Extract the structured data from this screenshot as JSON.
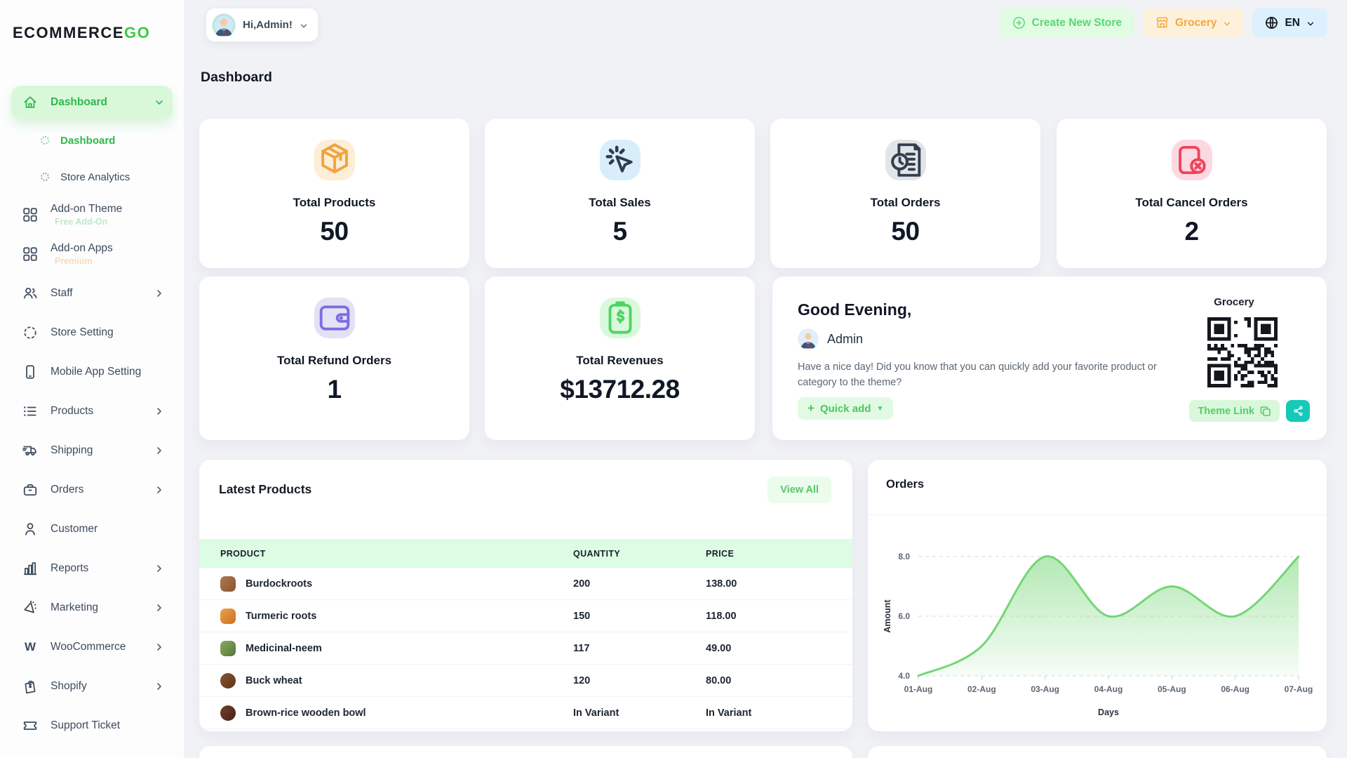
{
  "brand": {
    "text": "ECOMMERCE",
    "accent": "GO"
  },
  "header": {
    "greeting": "Hi,Admin!",
    "create_store": "Create New Store",
    "store": "Grocery",
    "lang": "EN"
  },
  "page_title": "Dashboard",
  "sidebar": {
    "items": [
      {
        "label": "Dashboard"
      },
      {
        "label": "Dashboard"
      },
      {
        "label": "Store Analytics"
      },
      {
        "label": "Add-on Theme",
        "badge": "Free Add-On"
      },
      {
        "label": "Add-on Apps",
        "badge": "Premium"
      },
      {
        "label": "Staff"
      },
      {
        "label": "Store Setting"
      },
      {
        "label": "Mobile App Setting"
      },
      {
        "label": "Products"
      },
      {
        "label": "Shipping"
      },
      {
        "label": "Orders"
      },
      {
        "label": "Customer"
      },
      {
        "label": "Reports"
      },
      {
        "label": "Marketing"
      },
      {
        "label": "WooCommerce"
      },
      {
        "label": "Shopify"
      },
      {
        "label": "Support Ticket"
      }
    ]
  },
  "stats": [
    {
      "label": "Total Products",
      "value": "50",
      "icon": "package-icon",
      "color": "#f2a33c",
      "bg": "#fdeed6"
    },
    {
      "label": "Total Sales",
      "value": "5",
      "icon": "sales-click-icon",
      "color": "#2f3c4c",
      "bg": "#d8effb"
    },
    {
      "label": "Total Orders",
      "value": "50",
      "icon": "orders-invoice-icon",
      "color": "#333e4e",
      "bg": "#e2e4e8"
    },
    {
      "label": "Total Cancel Orders",
      "value": "2",
      "icon": "cancel-order-icon",
      "color": "#f0435c",
      "bg": "#fcd9e0"
    },
    {
      "label": "Total Refund Orders",
      "value": "1",
      "icon": "refund-wallet-icon",
      "color": "#7b6ee2",
      "bg": "#e4e1f6"
    },
    {
      "label": "Total Revenues",
      "value": "$13712.28",
      "icon": "revenue-icon",
      "color": "#4ed463",
      "bg": "#d9f9dc"
    }
  ],
  "greeting_card": {
    "title": "Good Evening,",
    "user": "Admin",
    "message": "Have a nice day! Did you know that you can quickly add your favorite product or category to the theme?",
    "quick_add": "Quick add",
    "store_name": "Grocery",
    "theme_link": "Theme Link"
  },
  "latest_products": {
    "title": "Latest Products",
    "view_all": "View All",
    "columns": [
      "PRODUCT",
      "QUANTITY",
      "PRICE"
    ],
    "rows": [
      {
        "name": "Burdockroots",
        "quantity": "200",
        "price": "138.00",
        "thumb": "linear-gradient(135deg,#b07a52,#86552f)"
      },
      {
        "name": "Turmeric roots",
        "quantity": "150",
        "price": "118.00",
        "thumb": "linear-gradient(135deg,#eda04b,#c9711f)"
      },
      {
        "name": "Medicinal-neem",
        "quantity": "117",
        "price": "49.00",
        "thumb": "linear-gradient(135deg,#8aaa5e,#56763a)"
      },
      {
        "name": "Buck wheat",
        "quantity": "120",
        "price": "80.00",
        "thumb": "linear-gradient(135deg,#8a5430,#5c331d)"
      },
      {
        "name": "Brown-rice wooden bowl",
        "quantity": "In Variant",
        "price": "In Variant",
        "thumb": "linear-gradient(135deg,#74402c,#462115)"
      }
    ]
  },
  "chart_data": {
    "type": "area",
    "title": "Orders",
    "x": [
      "01-Aug",
      "02-Aug",
      "03-Aug",
      "04-Aug",
      "05-Aug",
      "06-Aug",
      "07-Aug"
    ],
    "values": [
      4,
      5,
      8,
      6,
      7,
      6,
      8
    ],
    "xlabel": "Days",
    "ylabel": "Amount",
    "yticks": [
      4.0,
      6.0,
      8.0
    ],
    "ylim": [
      4,
      8
    ],
    "line_color": "#74d675",
    "grid": "dashed-horizontal",
    "legend": "none"
  },
  "colors": {
    "accent_green": "#3ec943",
    "light_green": "#d9f8da",
    "teal_share": "#16c9b8",
    "orange": "#f5a83c",
    "table_header_bg": "#dcfce3"
  }
}
